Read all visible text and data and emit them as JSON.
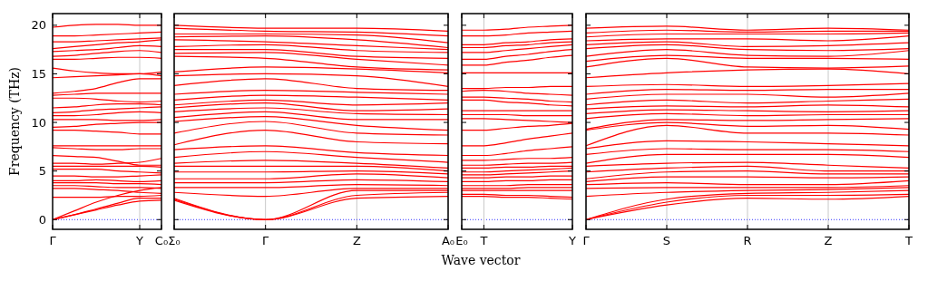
{
  "chart_data": [
    {
      "type": "line",
      "ylabel": "Frequency (THz)",
      "color": "#ff0000",
      "categories": [
        "Γ",
        null,
        null,
        null,
        "Y",
        "C₀"
      ],
      "ylim": [
        -1,
        21.2
      ],
      "yticks": [
        0,
        5,
        10,
        15,
        20
      ],
      "ref_lines": [
        {
          "axis": "y",
          "value": 0,
          "color": "#0000ff",
          "line_style": "dotted"
        },
        {
          "axis": "x",
          "value": "Y",
          "color": "#c8c8c8"
        }
      ],
      "series": [
        {
          "values": [
            0,
            0.5,
            1.0,
            1.5,
            1.9,
            2.0
          ]
        },
        {
          "values": [
            0,
            0.5,
            1.1,
            1.7,
            2.2,
            2.2
          ]
        },
        {
          "values": [
            0,
            0.9,
            1.8,
            2.5,
            3.0,
            3.3
          ]
        },
        {
          "values": [
            2.3,
            2.3,
            2.3,
            2.4,
            2.4,
            2.5
          ]
        },
        {
          "values": [
            3.2,
            3.2,
            3.1,
            3.0,
            2.8,
            2.7
          ]
        },
        {
          "values": [
            3.5,
            3.5,
            3.4,
            3.3,
            3.3,
            3.2
          ]
        },
        {
          "values": [
            3.8,
            3.8,
            3.8,
            3.7,
            3.7,
            3.6
          ]
        },
        {
          "values": [
            4.0,
            4.0,
            4.1,
            4.0,
            3.9,
            4.0
          ]
        },
        {
          "values": [
            4.5,
            4.5,
            4.4,
            4.4,
            4.5,
            4.6
          ]
        },
        {
          "values": [
            5.2,
            5.2,
            5.2,
            5.0,
            4.9,
            4.8
          ]
        },
        {
          "values": [
            5.5,
            5.5,
            5.5,
            5.5,
            5.5,
            5.4
          ]
        },
        {
          "values": [
            5.8,
            5.8,
            5.7,
            5.8,
            5.9,
            6.3
          ]
        },
        {
          "values": [
            6.6,
            6.5,
            6.4,
            6.0,
            5.6,
            5.6
          ]
        },
        {
          "values": [
            7.4,
            7.3,
            7.2,
            7.2,
            7.3,
            7.3
          ]
        },
        {
          "values": [
            7.6,
            7.6,
            7.6,
            7.6,
            7.6,
            7.6
          ]
        },
        {
          "values": [
            9.2,
            9.2,
            9.1,
            9.0,
            8.8,
            8.8
          ]
        },
        {
          "values": [
            9.5,
            9.6,
            9.8,
            9.9,
            10.0,
            10.0
          ]
        },
        {
          "values": [
            10.3,
            10.3,
            10.3,
            10.2,
            10.2,
            10.3
          ]
        },
        {
          "values": [
            10.7,
            10.7,
            10.8,
            11.0,
            11.1,
            11.0
          ]
        },
        {
          "values": [
            11.0,
            11.1,
            11.3,
            11.4,
            11.5,
            11.6
          ]
        },
        {
          "values": [
            11.5,
            11.6,
            11.8,
            11.9,
            11.9,
            11.8
          ]
        },
        {
          "values": [
            12.5,
            12.5,
            12.4,
            12.2,
            12.1,
            12.2
          ]
        },
        {
          "values": [
            12.8,
            12.9,
            13.0,
            13.0,
            13.0,
            13.0
          ]
        },
        {
          "values": [
            13.0,
            13.2,
            13.5,
            14.1,
            14.5,
            14.5
          ]
        },
        {
          "values": [
            14.6,
            14.7,
            14.8,
            14.9,
            15.0,
            14.8
          ]
        },
        {
          "values": [
            15.6,
            15.3,
            15.1,
            15.0,
            15.0,
            15.2
          ]
        },
        {
          "values": [
            16.5,
            16.5,
            16.6,
            16.7,
            16.7,
            16.6
          ]
        },
        {
          "values": [
            16.8,
            16.9,
            17.1,
            17.3,
            17.4,
            17.2
          ]
        },
        {
          "values": [
            17.3,
            17.4,
            17.5,
            17.7,
            17.9,
            17.8
          ]
        },
        {
          "values": [
            17.6,
            17.8,
            18.0,
            18.2,
            18.3,
            18.5
          ]
        },
        {
          "values": [
            18.3,
            18.3,
            18.4,
            18.5,
            18.6,
            18.7
          ]
        },
        {
          "values": [
            18.9,
            18.9,
            19.0,
            19.1,
            19.2,
            19.3
          ]
        },
        {
          "values": [
            19.8,
            20.0,
            20.1,
            20.1,
            20.0,
            20.0
          ]
        }
      ]
    },
    {
      "type": "line",
      "color": "#ff0000",
      "categories": [
        "Σ₀",
        "Γ",
        "Z",
        "A₀"
      ],
      "ylim": [
        -1,
        21.2
      ],
      "yticks": [
        0,
        5,
        10,
        15,
        20
      ],
      "tick_labels": "x",
      "grid": "x",
      "ref_lines": [
        {
          "axis": "y",
          "value": 0,
          "color": "#0000ff",
          "line_style": "dotted"
        }
      ],
      "series": [
        {
          "values": [
            2.0,
            0,
            2.2,
            2.4
          ]
        },
        {
          "values": [
            2.1,
            0,
            2.5,
            2.8
          ]
        },
        {
          "values": [
            2.2,
            0,
            3.0,
            3.0
          ]
        },
        {
          "values": [
            2.8,
            2.4,
            3.2,
            3.2
          ]
        },
        {
          "values": [
            3.3,
            3.3,
            3.6,
            3.5
          ]
        },
        {
          "values": [
            3.8,
            3.8,
            4.1,
            3.9
          ]
        },
        {
          "values": [
            4.2,
            4.2,
            4.7,
            4.3
          ]
        },
        {
          "values": [
            4.9,
            4.9,
            5.0,
            4.7
          ]
        },
        {
          "values": [
            5.5,
            5.5,
            5.5,
            5.0
          ]
        },
        {
          "values": [
            5.8,
            6.1,
            5.8,
            5.3
          ]
        },
        {
          "values": [
            6.4,
            7.0,
            6.4,
            5.9
          ]
        },
        {
          "values": [
            7.2,
            7.6,
            6.9,
            6.6
          ]
        },
        {
          "values": [
            7.7,
            9.2,
            8.0,
            7.8
          ]
        },
        {
          "values": [
            8.9,
            10.1,
            8.9,
            8.7
          ]
        },
        {
          "values": [
            10.1,
            10.6,
            9.7,
            9.2
          ]
        },
        {
          "values": [
            10.5,
            11.1,
            10.3,
            10.3
          ]
        },
        {
          "values": [
            11.1,
            11.5,
            10.9,
            10.8
          ]
        },
        {
          "values": [
            11.5,
            12.0,
            11.2,
            11.4
          ]
        },
        {
          "values": [
            11.8,
            12.3,
            11.8,
            12.0
          ]
        },
        {
          "values": [
            12.3,
            12.8,
            12.6,
            12.3
          ]
        },
        {
          "values": [
            12.9,
            13.3,
            13.1,
            12.9
          ]
        },
        {
          "values": [
            13.8,
            14.5,
            13.5,
            13.3
          ]
        },
        {
          "values": [
            14.8,
            15.0,
            14.8,
            13.7
          ]
        },
        {
          "values": [
            15.2,
            15.7,
            15.5,
            15.1
          ]
        },
        {
          "values": [
            16.8,
            16.6,
            15.7,
            15.4
          ]
        },
        {
          "values": [
            17.1,
            17.2,
            16.5,
            15.9
          ]
        },
        {
          "values": [
            17.5,
            17.5,
            16.8,
            16.6
          ]
        },
        {
          "values": [
            17.8,
            18.0,
            17.4,
            17.2
          ]
        },
        {
          "values": [
            18.5,
            18.3,
            17.9,
            17.5
          ]
        },
        {
          "values": [
            18.8,
            18.9,
            18.5,
            17.7
          ]
        },
        {
          "values": [
            19.1,
            19.1,
            19.0,
            18.2
          ]
        },
        {
          "values": [
            19.7,
            19.4,
            19.3,
            18.9
          ]
        },
        {
          "values": [
            20.0,
            19.7,
            19.7,
            19.4
          ]
        }
      ]
    },
    {
      "type": "line",
      "xlabel": "Wave vector",
      "color": "#ff0000",
      "categories": [
        "E₀",
        "T",
        null,
        null,
        null,
        "Y"
      ],
      "ylim": [
        -1,
        21.2
      ],
      "yticks": [
        0,
        5,
        10,
        15,
        20
      ],
      "tick_labels": "x",
      "ref_lines": [
        {
          "axis": "y",
          "value": 0,
          "color": "#0000ff",
          "line_style": "dotted"
        },
        {
          "axis": "x",
          "value": "T",
          "color": "#c8c8c8"
        }
      ],
      "series": [
        {
          "values": [
            2.4,
            2.4,
            2.3,
            2.3,
            2.2,
            2.1
          ]
        },
        {
          "values": [
            2.6,
            2.6,
            2.5,
            2.5,
            2.4,
            2.3
          ]
        },
        {
          "values": [
            3.0,
            3.0,
            3.0,
            3.0,
            3.0,
            3.0
          ]
        },
        {
          "values": [
            3.2,
            3.2,
            3.2,
            3.3,
            3.3,
            3.3
          ]
        },
        {
          "values": [
            3.5,
            3.5,
            3.5,
            3.6,
            3.6,
            3.6
          ]
        },
        {
          "values": [
            3.9,
            3.9,
            4.0,
            4.0,
            4.1,
            4.1
          ]
        },
        {
          "values": [
            4.3,
            4.3,
            4.4,
            4.4,
            4.5,
            4.5
          ]
        },
        {
          "values": [
            4.6,
            4.6,
            4.7,
            4.8,
            4.9,
            5.0
          ]
        },
        {
          "values": [
            4.9,
            4.9,
            5.0,
            5.1,
            5.2,
            5.3
          ]
        },
        {
          "values": [
            5.3,
            5.3,
            5.4,
            5.4,
            5.5,
            5.5
          ]
        },
        {
          "values": [
            5.6,
            5.6,
            5.7,
            5.8,
            5.8,
            5.9
          ]
        },
        {
          "values": [
            6.1,
            6.1,
            6.2,
            6.3,
            6.3,
            6.4
          ]
        },
        {
          "values": [
            6.6,
            6.6,
            6.8,
            7.1,
            7.3,
            7.5
          ]
        },
        {
          "values": [
            7.6,
            7.6,
            7.9,
            8.3,
            8.6,
            8.9
          ]
        },
        {
          "values": [
            9.2,
            9.2,
            9.4,
            9.6,
            9.7,
            9.9
          ]
        },
        {
          "values": [
            10.4,
            10.4,
            10.3,
            10.2,
            10.1,
            10.0
          ]
        },
        {
          "values": [
            10.8,
            10.8,
            10.8,
            10.7,
            10.7,
            10.7
          ]
        },
        {
          "values": [
            11.2,
            11.2,
            11.2,
            11.2,
            11.2,
            11.2
          ]
        },
        {
          "values": [
            12.3,
            12.3,
            12.1,
            12.0,
            11.8,
            11.7
          ]
        },
        {
          "values": [
            12.6,
            12.6,
            12.5,
            12.4,
            12.2,
            12.1
          ]
        },
        {
          "values": [
            13.2,
            13.3,
            13.2,
            13.0,
            12.9,
            12.8
          ]
        },
        {
          "values": [
            13.5,
            13.5,
            13.6,
            13.6,
            13.7,
            13.7
          ]
        },
        {
          "values": [
            15.1,
            15.1,
            15.1,
            15.1,
            15.1,
            15.1
          ]
        },
        {
          "values": [
            15.9,
            15.9,
            16.2,
            16.4,
            16.7,
            16.9
          ]
        },
        {
          "values": [
            16.5,
            16.5,
            16.8,
            17.0,
            17.3,
            17.5
          ]
        },
        {
          "values": [
            17.2,
            17.2,
            17.4,
            17.6,
            17.8,
            18.0
          ]
        },
        {
          "values": [
            17.7,
            17.7,
            17.9,
            18.0,
            18.2,
            18.3
          ]
        },
        {
          "values": [
            18.0,
            18.0,
            18.2,
            18.3,
            18.5,
            18.6
          ]
        },
        {
          "values": [
            18.9,
            18.9,
            19.0,
            19.2,
            19.3,
            19.4
          ]
        },
        {
          "values": [
            19.5,
            19.5,
            19.6,
            19.8,
            19.9,
            20.0
          ]
        }
      ]
    },
    {
      "type": "line",
      "color": "#ff0000",
      "categories": [
        "Γ",
        "S",
        "R",
        "Z",
        "T"
      ],
      "ylim": [
        -1,
        21.2
      ],
      "yticks": [
        0,
        5,
        10,
        15,
        20
      ],
      "tick_labels": "x",
      "grid": "x",
      "ref_lines": [
        {
          "axis": "y",
          "value": 0,
          "color": "#0000ff",
          "line_style": "dotted"
        }
      ],
      "series": [
        {
          "values": [
            0,
            1.5,
            2.2,
            2.1,
            2.4
          ]
        },
        {
          "values": [
            0,
            1.8,
            2.5,
            2.5,
            2.6
          ]
        },
        {
          "values": [
            0,
            2.1,
            2.7,
            2.8,
            3.0
          ]
        },
        {
          "values": [
            2.4,
            2.8,
            3.0,
            3.1,
            3.3
          ]
        },
        {
          "values": [
            3.2,
            3.3,
            3.3,
            3.3,
            3.5
          ]
        },
        {
          "values": [
            3.6,
            3.8,
            3.6,
            3.6,
            4.0
          ]
        },
        {
          "values": [
            3.9,
            4.4,
            4.4,
            4.3,
            4.4
          ]
        },
        {
          "values": [
            4.2,
            4.9,
            5.0,
            4.7,
            4.7
          ]
        },
        {
          "values": [
            4.9,
            5.3,
            5.5,
            5.0,
            5.0
          ]
        },
        {
          "values": [
            5.5,
            5.8,
            5.9,
            5.6,
            5.3
          ]
        },
        {
          "values": [
            5.8,
            6.7,
            6.7,
            6.7,
            6.4
          ]
        },
        {
          "values": [
            6.7,
            7.3,
            7.2,
            7.2,
            7.0
          ]
        },
        {
          "values": [
            7.3,
            8.1,
            8.0,
            7.8,
            7.6
          ]
        },
        {
          "values": [
            7.6,
            9.7,
            8.9,
            8.9,
            8.7
          ]
        },
        {
          "values": [
            9.2,
            10.0,
            9.6,
            9.7,
            9.3
          ]
        },
        {
          "values": [
            9.3,
            10.3,
            10.2,
            10.3,
            10.4
          ]
        },
        {
          "values": [
            10.4,
            10.9,
            10.7,
            10.8,
            10.8
          ]
        },
        {
          "values": [
            10.9,
            11.3,
            11.2,
            11.1,
            11.2
          ]
        },
        {
          "values": [
            11.4,
            11.7,
            11.6,
            11.8,
            11.6
          ]
        },
        {
          "values": [
            11.8,
            12.3,
            12.0,
            12.2,
            12.4
          ]
        },
        {
          "values": [
            12.4,
            12.9,
            12.9,
            12.6,
            13.0
          ]
        },
        {
          "values": [
            12.9,
            13.4,
            13.3,
            13.4,
            13.4
          ]
        },
        {
          "values": [
            13.7,
            13.9,
            13.7,
            13.8,
            14.0
          ]
        },
        {
          "values": [
            14.6,
            15.1,
            15.4,
            15.5,
            15.0
          ]
        },
        {
          "values": [
            15.7,
            16.6,
            15.7,
            15.6,
            15.8
          ]
        },
        {
          "values": [
            16.3,
            16.9,
            16.6,
            16.6,
            16.5
          ]
        },
        {
          "values": [
            16.8,
            17.5,
            16.9,
            16.8,
            17.4
          ]
        },
        {
          "values": [
            17.6,
            18.0,
            17.5,
            17.4,
            17.6
          ]
        },
        {
          "values": [
            18.0,
            18.3,
            17.8,
            17.9,
            18.2
          ]
        },
        {
          "values": [
            18.4,
            18.6,
            18.6,
            18.4,
            18.9
          ]
        },
        {
          "values": [
            18.8,
            19.1,
            19.1,
            19.1,
            19.2
          ]
        },
        {
          "values": [
            19.2,
            19.5,
            19.3,
            19.4,
            19.4
          ]
        },
        {
          "values": [
            19.7,
            19.9,
            19.5,
            19.7,
            19.5
          ]
        }
      ]
    }
  ]
}
